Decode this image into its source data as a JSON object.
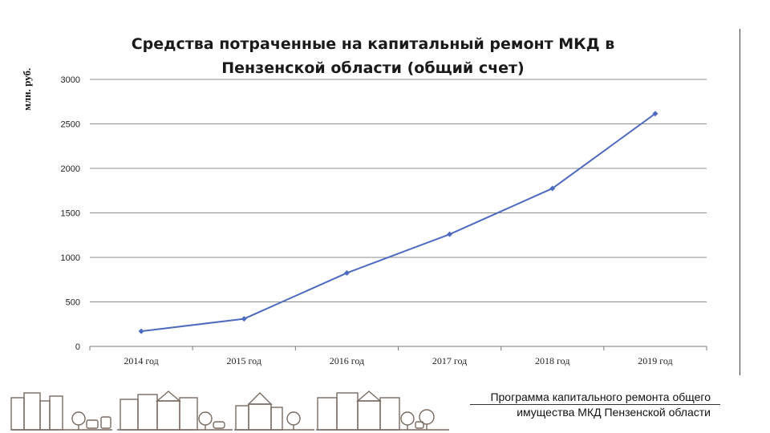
{
  "chart_data": {
    "type": "line",
    "title_lines": [
      "Средства потраченные на капитальный ремонт МКД в",
      "Пензенской области (общий счет)"
    ],
    "ylabel": "млн. руб.",
    "categories": [
      "2014 год",
      "2015 год",
      "2016 год",
      "2017 год",
      "2018 год",
      "2019 год"
    ],
    "series": [
      {
        "values": [
          170,
          310,
          825,
          1260,
          1775,
          2615
        ]
      }
    ],
    "ylim": [
      0,
      3000
    ],
    "yticks": [
      0,
      500,
      1000,
      1500,
      2000,
      2500,
      3000
    ],
    "grid": true,
    "line_color": "#4f6bbf",
    "grid_color": "#8c8c8c"
  },
  "footer": {
    "line1": "Программа капитального ремонта общего",
    "line2": "имущества МКД Пензенской области"
  },
  "decoration": {
    "city_color": "#7a6a60"
  }
}
